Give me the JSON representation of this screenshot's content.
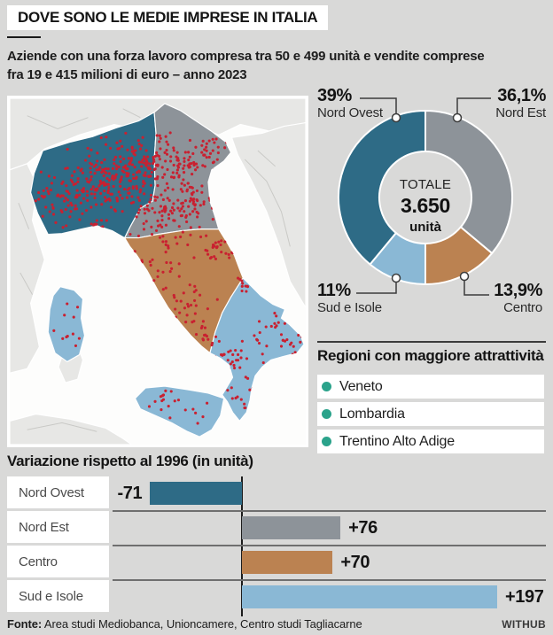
{
  "header": {
    "title": "DOVE SONO LE MEDIE IMPRESE IN ITALIA",
    "subtitle_line1": "Aziende con una forza lavoro compresa tra 50 e 499 unità e vendite comprese",
    "subtitle_line2": "fra 19 e 415 milioni di euro – anno 2023"
  },
  "colors": {
    "nord_ovest": "#2e6b86",
    "nord_est": "#8d9399",
    "centro": "#bb8251",
    "sud_e_isole": "#8ab8d5",
    "dots_red": "#c92030",
    "bullet_green": "#2ba38b",
    "land": "#e7e7e5",
    "sea": "#fdfdfc"
  },
  "attractive_regions": {
    "heading": "Regioni con maggiore attrattività",
    "items": [
      "Veneto",
      "Lombardia",
      "Trentino Alto Adige"
    ]
  },
  "footer": {
    "source_label": "Fonte:",
    "source_text": " Area studi Mediobanca, Unioncamere, Centro studi Tagliacarne",
    "brand": "WITHUB"
  },
  "chart_data": [
    {
      "type": "pie",
      "subtype": "donut",
      "center_label": "TOTALE",
      "center_value": "3.650",
      "center_unit": "unità",
      "start_angle_deg": 0,
      "clockwise": true,
      "slices": [
        {
          "label": "Nord Est",
          "pct": 36.1,
          "pct_label": "36,1%",
          "color": "#8d9399"
        },
        {
          "label": "Centro",
          "pct": 13.9,
          "pct_label": "13,9%",
          "color": "#bb8251"
        },
        {
          "label": "Sud e Isole",
          "pct": 11.0,
          "pct_label": "11%",
          "color": "#8ab8d5"
        },
        {
          "label": "Nord Ovest",
          "pct": 39.0,
          "pct_label": "39%",
          "color": "#2e6b86"
        }
      ]
    },
    {
      "type": "bar",
      "orientation": "horizontal",
      "title": "Variazione rispetto al 1996 (in unità)",
      "categories": [
        "Nord Ovest",
        "Nord Est",
        "Centro",
        "Sud e Isole"
      ],
      "values": [
        -71,
        76,
        70,
        197
      ],
      "value_labels": [
        "-71",
        "+76",
        "+70",
        "+197"
      ],
      "colors": [
        "#2e6b86",
        "#8d9399",
        "#bb8251",
        "#8ab8d5"
      ],
      "zero_line": true
    }
  ]
}
